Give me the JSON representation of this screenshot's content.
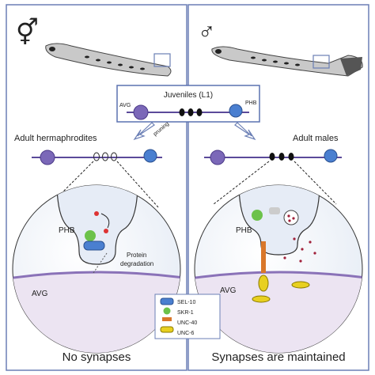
{
  "juvenile": {
    "title": "Juveniles (L1)",
    "left_neuron": "AVG",
    "right_neuron": "PHB",
    "arrow_label": "pruning"
  },
  "panels": [
    {
      "symbol": "⚥",
      "stage_label": "Adult hermaphrodites",
      "neuron_top": "PHB",
      "neuron_bottom": "AVG",
      "annotation_lines": [
        "Protein",
        "degradation"
      ],
      "caption": "No synapses"
    },
    {
      "symbol": "♂",
      "stage_label": "Adult males",
      "neuron_top": "PHB",
      "neuron_bottom": "AVG",
      "caption": "Synapses are maintained"
    }
  ],
  "legend": [
    {
      "label": "SEL-10"
    },
    {
      "label": "SKR-1"
    },
    {
      "label": "UNC-40"
    },
    {
      "label": "UNC-6"
    }
  ]
}
